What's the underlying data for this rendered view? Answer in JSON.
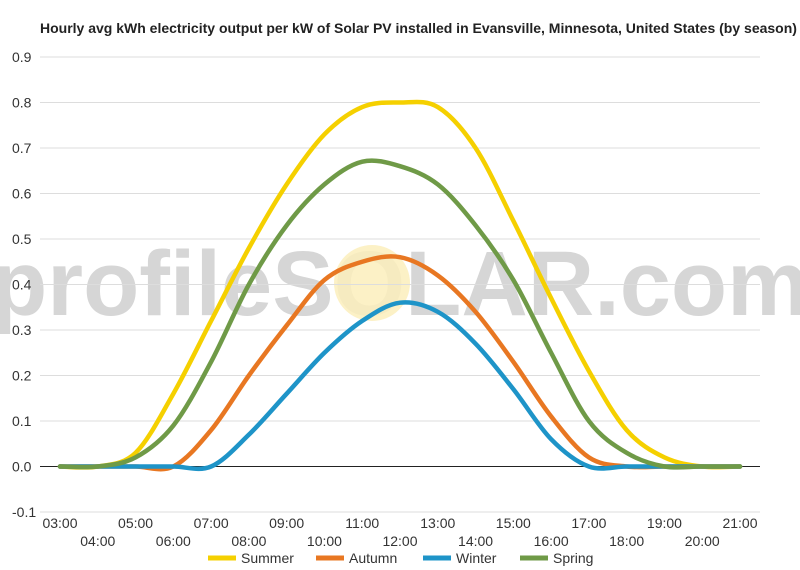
{
  "chart_data": {
    "type": "line",
    "title": "Hourly avg kWh electricity output per kW of Solar PV installed in Evansville, Minnesota, United States (by season)",
    "xlabel": "",
    "ylabel": "",
    "x_tick_labels": [
      "03:00",
      "04:00",
      "05:00",
      "06:00",
      "07:00",
      "08:00",
      "09:00",
      "10:00",
      "11:00",
      "12:00",
      "13:00",
      "14:00",
      "15:00",
      "16:00",
      "17:00",
      "18:00",
      "19:00",
      "20:00",
      "21:00"
    ],
    "y_tick_labels": [
      "0.9",
      "0.8",
      "0.7",
      "0.6",
      "0.5",
      "0.4",
      "0.3",
      "0.2",
      "0.1",
      "0.0",
      "-0.1"
    ],
    "ylim": [
      -0.1,
      0.9
    ],
    "x_hours": [
      3,
      4,
      5,
      6,
      7,
      8,
      9,
      10,
      11,
      12,
      13,
      14,
      15,
      16,
      17,
      18,
      19,
      20,
      21
    ],
    "grid": "horizontal",
    "legend_position": "bottom",
    "watermark": "profileSOLAR.com",
    "series": [
      {
        "name": "Summer",
        "color": "#f5d000",
        "values": [
          0.0,
          0.0,
          0.03,
          0.16,
          0.32,
          0.48,
          0.62,
          0.73,
          0.79,
          0.8,
          0.79,
          0.7,
          0.54,
          0.37,
          0.21,
          0.08,
          0.02,
          0.0,
          0.0
        ]
      },
      {
        "name": "Autumn",
        "color": "#e87722",
        "values": [
          0.0,
          0.0,
          0.0,
          0.0,
          0.08,
          0.2,
          0.31,
          0.41,
          0.45,
          0.46,
          0.42,
          0.34,
          0.23,
          0.11,
          0.02,
          0.0,
          0.0,
          0.0,
          0.0
        ]
      },
      {
        "name": "Winter",
        "color": "#1e94c8",
        "values": [
          0.0,
          0.0,
          0.0,
          0.0,
          0.0,
          0.07,
          0.16,
          0.25,
          0.32,
          0.36,
          0.34,
          0.27,
          0.17,
          0.06,
          0.0,
          0.0,
          0.0,
          0.0,
          0.0
        ]
      },
      {
        "name": "Spring",
        "color": "#6f9a47",
        "values": [
          0.0,
          0.0,
          0.02,
          0.09,
          0.23,
          0.4,
          0.53,
          0.62,
          0.67,
          0.66,
          0.62,
          0.53,
          0.41,
          0.25,
          0.1,
          0.03,
          0.0,
          0.0,
          0.0
        ]
      }
    ]
  }
}
